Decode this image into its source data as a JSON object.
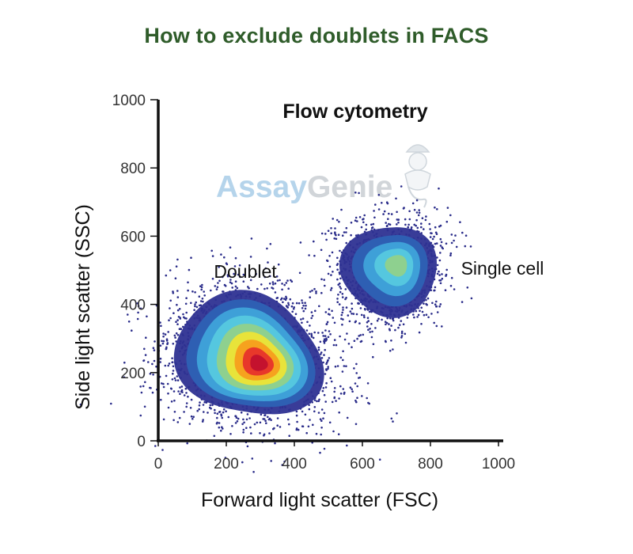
{
  "chart_data": {
    "type": "scatter",
    "title": "How to exclude doublets in FACS",
    "subtitle": "Flow cytometry",
    "xlabel": "Forward light scatter (FSC)",
    "ylabel": "Side light scatter (SSC)",
    "xlim": [
      0,
      1000
    ],
    "ylim": [
      0,
      1000
    ],
    "xticks": [
      "0",
      "200",
      "400",
      "600",
      "800",
      "1000"
    ],
    "yticks": [
      "0",
      "200",
      "400",
      "600",
      "800",
      "1000"
    ],
    "grid": false,
    "density_scale": [
      "#2e3192",
      "#2e5fb3",
      "#3ea0d8",
      "#55c7df",
      "#8ed08f",
      "#e8e33a",
      "#f6a21e",
      "#e8382a",
      "#c4122e"
    ],
    "populations": [
      {
        "name": "Doublet",
        "center": [
          265,
          250
        ],
        "fsc_range": [
          50,
          500
        ],
        "ssc_range": [
          20,
          420
        ],
        "peak_density_level": 9
      },
      {
        "name": "Single cell",
        "center": [
          680,
          500
        ],
        "fsc_range": [
          520,
          830
        ],
        "ssc_range": [
          360,
          660
        ],
        "peak_density_level": 5
      }
    ],
    "annotations": [
      {
        "text": "Doublet",
        "x": 210,
        "y": 490
      },
      {
        "text": "Single cell",
        "x": 860,
        "y": 500
      }
    ]
  },
  "watermark": {
    "text_part1": "Assay",
    "text_part2": "Genie",
    "color1": "#a9cde8",
    "color2": "#c9ced3"
  },
  "colors": {
    "title": "#2f5c2a",
    "axis": "#111111"
  }
}
